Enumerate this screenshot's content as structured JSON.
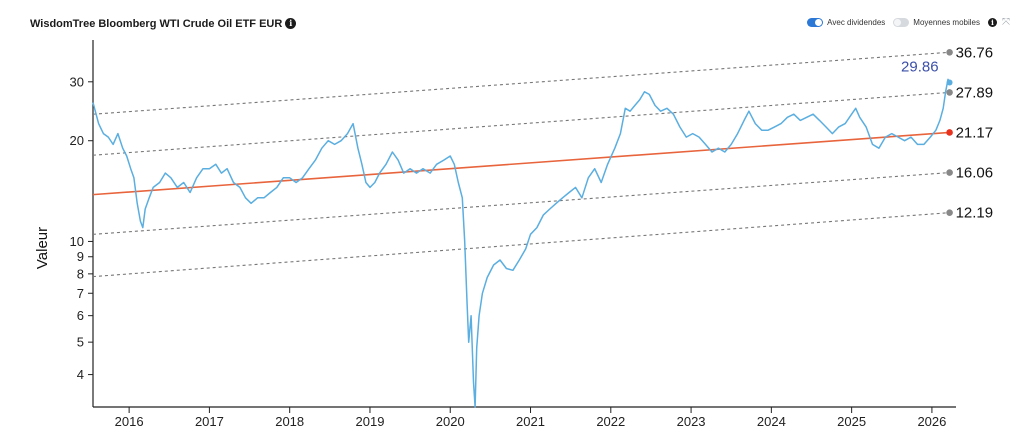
{
  "header": {
    "title": "WisdomTree Bloomberg WTI Crude Oil ETF EUR",
    "dividends_label": "Avec dividendes",
    "moving_avg_label": "Moyennes mobiles",
    "dividends_on": true,
    "moving_avg_on": false
  },
  "colors": {
    "series": "#5aaee0",
    "trend": "#e8643c",
    "band": "#777777",
    "last_value": "#3b4fa8"
  },
  "chart_data": {
    "type": "line",
    "ylabel": "Valeur",
    "yscale": "log",
    "ylim": [
      3.2,
      40
    ],
    "xlim": [
      2015.55,
      2026.3
    ],
    "x_ticks": [
      "2016",
      "2017",
      "2018",
      "2019",
      "2020",
      "2021",
      "2022",
      "2023",
      "2024",
      "2025",
      "2026"
    ],
    "y_ticks": [
      4,
      5,
      6,
      7,
      8,
      9,
      10,
      20,
      30
    ],
    "last_value": "29.86",
    "channel": [
      {
        "value": "36.76",
        "start": 24.0,
        "type": "band",
        "marker_color": "#888888"
      },
      {
        "value": "27.89",
        "start": 18.1,
        "type": "band",
        "marker_color": "#888888"
      },
      {
        "value": "21.17",
        "start": 13.8,
        "type": "trend",
        "marker_color": "#e8321e"
      },
      {
        "value": "16.06",
        "start": 10.5,
        "type": "band",
        "marker_color": "#888888"
      },
      {
        "value": "12.19",
        "start": 7.85,
        "type": "band",
        "marker_color": "#888888"
      }
    ],
    "series": [
      {
        "points": [
          [
            2015.55,
            26
          ],
          [
            2015.62,
            22.5
          ],
          [
            2015.68,
            21
          ],
          [
            2015.74,
            20.5
          ],
          [
            2015.8,
            19.5
          ],
          [
            2015.86,
            21
          ],
          [
            2015.92,
            19
          ],
          [
            2015.97,
            18
          ],
          [
            2016.02,
            16.5
          ],
          [
            2016.06,
            15.5
          ],
          [
            2016.1,
            13
          ],
          [
            2016.14,
            11.5
          ],
          [
            2016.17,
            11
          ],
          [
            2016.2,
            12.5
          ],
          [
            2016.25,
            13.5
          ],
          [
            2016.3,
            14.5
          ],
          [
            2016.38,
            15
          ],
          [
            2016.45,
            16
          ],
          [
            2016.52,
            15.5
          ],
          [
            2016.6,
            14.5
          ],
          [
            2016.68,
            15
          ],
          [
            2016.76,
            14
          ],
          [
            2016.84,
            15.5
          ],
          [
            2016.92,
            16.5
          ],
          [
            2017.0,
            16.5
          ],
          [
            2017.08,
            17
          ],
          [
            2017.15,
            16
          ],
          [
            2017.22,
            16.5
          ],
          [
            2017.3,
            15
          ],
          [
            2017.38,
            14.5
          ],
          [
            2017.45,
            13.5
          ],
          [
            2017.52,
            13
          ],
          [
            2017.6,
            13.5
          ],
          [
            2017.68,
            13.5
          ],
          [
            2017.76,
            14
          ],
          [
            2017.84,
            14.5
          ],
          [
            2017.92,
            15.5
          ],
          [
            2018.0,
            15.5
          ],
          [
            2018.08,
            15
          ],
          [
            2018.16,
            15.5
          ],
          [
            2018.24,
            16.5
          ],
          [
            2018.32,
            17.5
          ],
          [
            2018.4,
            19
          ],
          [
            2018.48,
            20
          ],
          [
            2018.56,
            19.5
          ],
          [
            2018.64,
            20
          ],
          [
            2018.72,
            21
          ],
          [
            2018.79,
            22.5
          ],
          [
            2018.85,
            19
          ],
          [
            2018.9,
            17
          ],
          [
            2018.95,
            15
          ],
          [
            2019.0,
            14.5
          ],
          [
            2019.06,
            15
          ],
          [
            2019.12,
            16
          ],
          [
            2019.2,
            17
          ],
          [
            2019.28,
            18.5
          ],
          [
            2019.35,
            17.5
          ],
          [
            2019.42,
            16
          ],
          [
            2019.5,
            16.5
          ],
          [
            2019.58,
            16
          ],
          [
            2019.66,
            16.5
          ],
          [
            2019.75,
            16
          ],
          [
            2019.83,
            17
          ],
          [
            2019.92,
            17.5
          ],
          [
            2020.0,
            18
          ],
          [
            2020.05,
            17
          ],
          [
            2020.1,
            15
          ],
          [
            2020.15,
            13.5
          ],
          [
            2020.18,
            10
          ],
          [
            2020.21,
            6.5
          ],
          [
            2020.23,
            5
          ],
          [
            2020.26,
            6
          ],
          [
            2020.29,
            3.8
          ],
          [
            2020.31,
            3.2
          ],
          [
            2020.33,
            4.8
          ],
          [
            2020.36,
            6
          ],
          [
            2020.4,
            7
          ],
          [
            2020.46,
            7.8
          ],
          [
            2020.54,
            8.5
          ],
          [
            2020.62,
            8.8
          ],
          [
            2020.7,
            8.3
          ],
          [
            2020.78,
            8.2
          ],
          [
            2020.86,
            8.8
          ],
          [
            2020.94,
            9.5
          ],
          [
            2021.0,
            10.5
          ],
          [
            2021.08,
            11
          ],
          [
            2021.16,
            12
          ],
          [
            2021.24,
            12.5
          ],
          [
            2021.32,
            13
          ],
          [
            2021.4,
            13.5
          ],
          [
            2021.48,
            14
          ],
          [
            2021.56,
            14.5
          ],
          [
            2021.64,
            13.5
          ],
          [
            2021.72,
            15.5
          ],
          [
            2021.8,
            16.5
          ],
          [
            2021.88,
            15
          ],
          [
            2021.96,
            17
          ],
          [
            2022.05,
            19
          ],
          [
            2022.12,
            21
          ],
          [
            2022.18,
            25
          ],
          [
            2022.24,
            24.5
          ],
          [
            2022.3,
            25.5
          ],
          [
            2022.36,
            26.5
          ],
          [
            2022.42,
            28
          ],
          [
            2022.48,
            27.5
          ],
          [
            2022.55,
            25.5
          ],
          [
            2022.62,
            24.5
          ],
          [
            2022.7,
            25
          ],
          [
            2022.78,
            24
          ],
          [
            2022.86,
            22
          ],
          [
            2022.94,
            20.5
          ],
          [
            2023.02,
            21
          ],
          [
            2023.1,
            20.5
          ],
          [
            2023.18,
            19.5
          ],
          [
            2023.26,
            18.5
          ],
          [
            2023.34,
            19
          ],
          [
            2023.42,
            18.5
          ],
          [
            2023.5,
            19.5
          ],
          [
            2023.58,
            21
          ],
          [
            2023.66,
            23
          ],
          [
            2023.72,
            24.5
          ],
          [
            2023.8,
            22.5
          ],
          [
            2023.88,
            21.5
          ],
          [
            2023.96,
            21.5
          ],
          [
            2024.04,
            22
          ],
          [
            2024.12,
            22.5
          ],
          [
            2024.2,
            23.5
          ],
          [
            2024.28,
            24
          ],
          [
            2024.36,
            23
          ],
          [
            2024.44,
            23.5
          ],
          [
            2024.52,
            24
          ],
          [
            2024.6,
            23
          ],
          [
            2024.68,
            22
          ],
          [
            2024.76,
            21
          ],
          [
            2024.84,
            22
          ],
          [
            2024.92,
            22.5
          ],
          [
            2025.0,
            24
          ],
          [
            2025.05,
            25
          ],
          [
            2025.1,
            23.5
          ],
          [
            2025.18,
            22
          ],
          [
            2025.26,
            19.5
          ],
          [
            2025.34,
            19
          ],
          [
            2025.42,
            20.5
          ],
          [
            2025.5,
            21
          ],
          [
            2025.58,
            20.5
          ],
          [
            2025.66,
            20
          ],
          [
            2025.74,
            20.5
          ],
          [
            2025.82,
            19.5
          ],
          [
            2025.9,
            19.5
          ],
          [
            2025.98,
            20.5
          ],
          [
            2026.05,
            21.5
          ],
          [
            2026.1,
            23
          ],
          [
            2026.14,
            25
          ],
          [
            2026.17,
            28
          ],
          [
            2026.2,
            30.5
          ],
          [
            2026.22,
            29.86
          ]
        ]
      }
    ]
  }
}
